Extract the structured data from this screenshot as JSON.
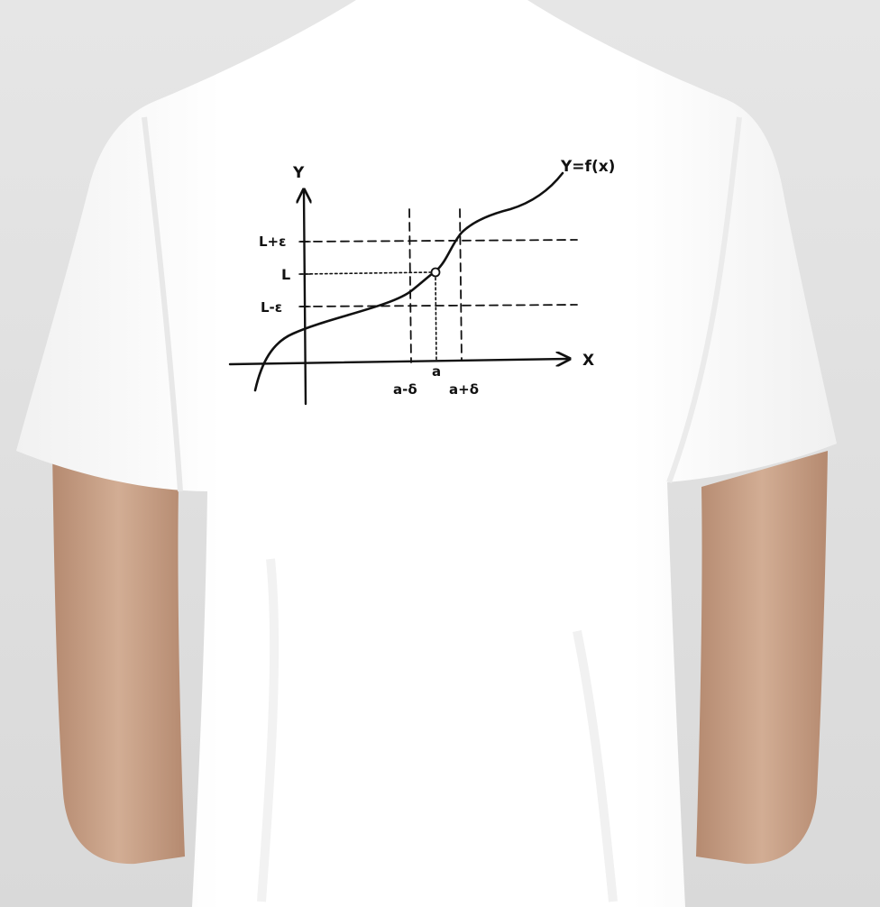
{
  "scene": {
    "subject": "white t-shirt back view",
    "background_color": "#e2e2e2",
    "shirt_color": "#fbfbfb",
    "skin_color": "#c9a48c",
    "ink_color": "#111111"
  },
  "print": {
    "labels": {
      "y_axis": "Y",
      "x_axis": "X",
      "curve": "Y=f(x)",
      "upper": "L+ε",
      "limit": "L",
      "lower": "L-ε",
      "left_delta": "a-δ",
      "point": "a",
      "right_delta": "a+δ"
    }
  }
}
